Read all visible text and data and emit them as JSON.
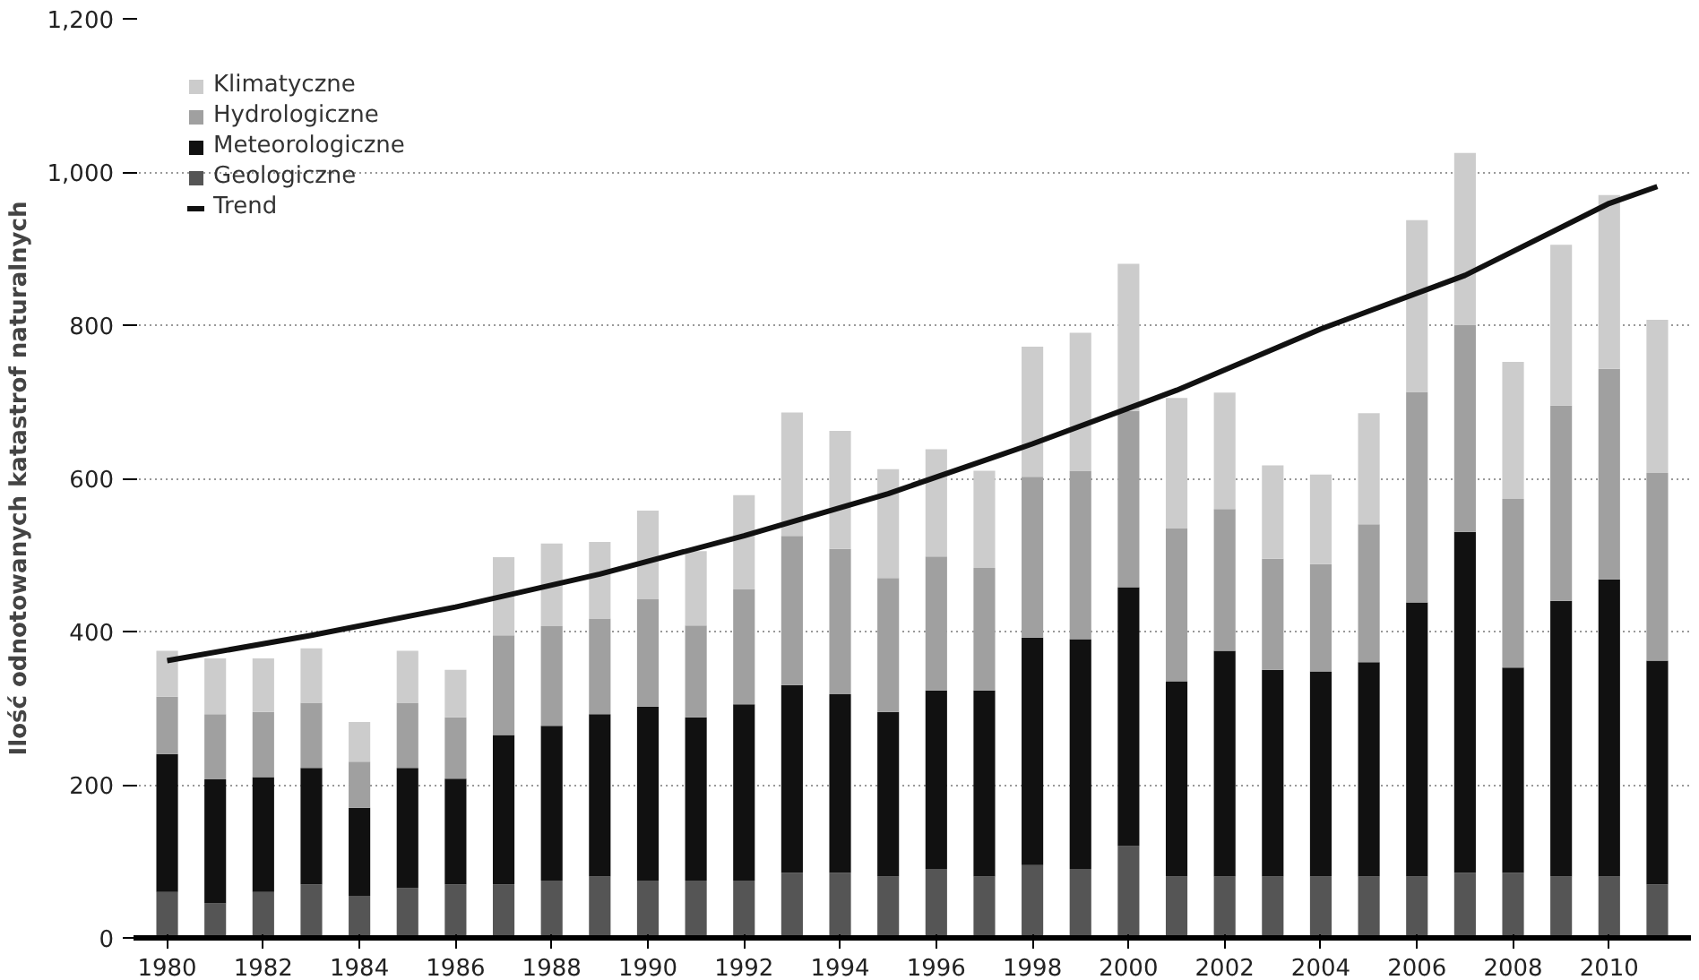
{
  "chart_data": {
    "type": "bar",
    "stacked": true,
    "ylabel": "Ilość odnotowanych katastrof naturalnych",
    "x": [
      1980,
      1981,
      1982,
      1983,
      1984,
      1985,
      1986,
      1987,
      1988,
      1989,
      1990,
      1991,
      1992,
      1993,
      1994,
      1995,
      1996,
      1997,
      1998,
      1999,
      2000,
      2001,
      2002,
      2003,
      2004,
      2005,
      2006,
      2007,
      2008,
      2009,
      2010,
      2011
    ],
    "xlim": [
      1979.3,
      2011.7
    ],
    "xticks": [
      1980,
      1982,
      1984,
      1986,
      1988,
      1990,
      1992,
      1994,
      1996,
      1998,
      2000,
      2002,
      2004,
      2006,
      2008,
      2010
    ],
    "ylim": [
      0,
      1200
    ],
    "yticks": [
      0,
      200,
      400,
      600,
      800,
      {
        "value": 1000,
        "label": "1,000"
      },
      {
        "value": 1200,
        "label": "1,200"
      }
    ],
    "grid": "y",
    "legend": "top left",
    "series": [
      {
        "name": "Geologiczne",
        "color": "#555555",
        "values": [
          60,
          45,
          60,
          70,
          55,
          65,
          70,
          70,
          75,
          80,
          75,
          75,
          75,
          85,
          85,
          80,
          90,
          80,
          95,
          90,
          120,
          80,
          80,
          80,
          80,
          80,
          80,
          85,
          85,
          80,
          80,
          70
        ]
      },
      {
        "name": "Meteorologiczne",
        "color": "#111111",
        "values": [
          180,
          162,
          150,
          152,
          115,
          157,
          138,
          195,
          202,
          212,
          227,
          213,
          230,
          245,
          233,
          215,
          233,
          243,
          297,
          300,
          338,
          255,
          295,
          270,
          268,
          280,
          358,
          445,
          268,
          360,
          388,
          292
        ]
      },
      {
        "name": "Hydrologiczne",
        "color": "#a0a0a0",
        "values": [
          75,
          85,
          85,
          85,
          60,
          85,
          80,
          130,
          130,
          125,
          140,
          120,
          150,
          195,
          190,
          175,
          175,
          160,
          210,
          220,
          230,
          200,
          185,
          145,
          140,
          180,
          275,
          270,
          220,
          255,
          275,
          245
        ]
      },
      {
        "name": "Klimatyczne",
        "color": "#cccccc",
        "values": [
          60,
          73,
          70,
          71,
          52,
          68,
          62,
          102,
          108,
          100,
          116,
          97,
          123,
          161,
          154,
          142,
          140,
          127,
          170,
          180,
          192,
          170,
          152,
          122,
          117,
          145,
          224,
          225,
          179,
          210,
          227,
          200
        ]
      },
      {
        "name": "Trend",
        "type": "line",
        "color": "#111111",
        "x": [
          1980,
          1983,
          1986,
          1989,
          1992,
          1995,
          1998,
          2001,
          2004,
          2007,
          2010,
          2011
        ],
        "values": [
          362,
          395,
          432,
          475,
          525,
          580,
          645,
          715,
          795,
          865,
          959,
          981
        ]
      }
    ]
  }
}
